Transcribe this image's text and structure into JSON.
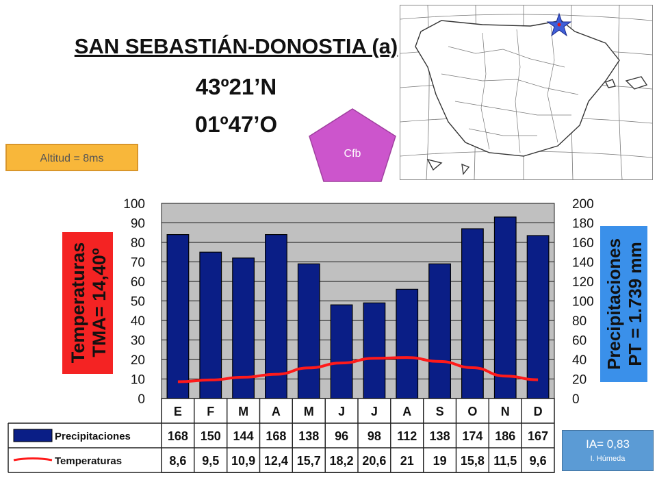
{
  "header": {
    "station": "SAN SEBASTIÁN-DONOSTIA (a)",
    "latitude": "43º21’N",
    "longitude": "01º47’O",
    "altitude": "Altitud = 8ms",
    "koppen": "Cfb"
  },
  "side_labels": {
    "temp_title": "Temperaturas",
    "temp_value": "TMA= 14,40º",
    "prec_title": "Precipitaciones",
    "prec_value": "PT = 1.739 mm"
  },
  "index": {
    "ia": "IA= 0,83",
    "label": "I. Húmeda"
  },
  "table": {
    "prec_label": "Precipitaciones",
    "temp_label": "Temperaturas"
  },
  "colors": {
    "bar": "#0a1e86",
    "line": "#ff1a1a",
    "plot_bg": "#c0c0c0",
    "altbox": "#f8b73a",
    "pentagon": "#cc55cc",
    "iabox": "#5b9bd5"
  },
  "chart_data": {
    "type": "bar",
    "categories": [
      "E",
      "F",
      "M",
      "A",
      "M",
      "J",
      "J",
      "A",
      "S",
      "O",
      "N",
      "D"
    ],
    "series": [
      {
        "name": "Precipitaciones",
        "type": "bar",
        "axis": "right",
        "values": [
          168,
          150,
          144,
          168,
          138,
          96,
          98,
          112,
          138,
          174,
          186,
          167
        ]
      },
      {
        "name": "Temperaturas",
        "type": "line",
        "axis": "left",
        "values": [
          8.6,
          9.5,
          10.9,
          12.4,
          15.7,
          18.2,
          20.6,
          21,
          19,
          15.8,
          11.5,
          9.6
        ]
      }
    ],
    "value_labels": {
      "Precipitaciones": [
        "168",
        "150",
        "144",
        "168",
        "138",
        "96",
        "98",
        "112",
        "138",
        "174",
        "186",
        "167"
      ],
      "Temperaturas": [
        "8,6",
        "9,5",
        "10,9",
        "12,4",
        "15,7",
        "18,2",
        "20,6",
        "21",
        "19",
        "15,8",
        "11,5",
        "9,6"
      ]
    },
    "left_ticks": [
      0,
      10,
      20,
      30,
      40,
      50,
      60,
      70,
      80,
      90,
      100
    ],
    "right_ticks": [
      0,
      20,
      40,
      60,
      80,
      100,
      120,
      140,
      160,
      180,
      200
    ],
    "ylim_left": [
      0,
      100
    ],
    "ylim_right": [
      0,
      200
    ],
    "grid": true
  }
}
